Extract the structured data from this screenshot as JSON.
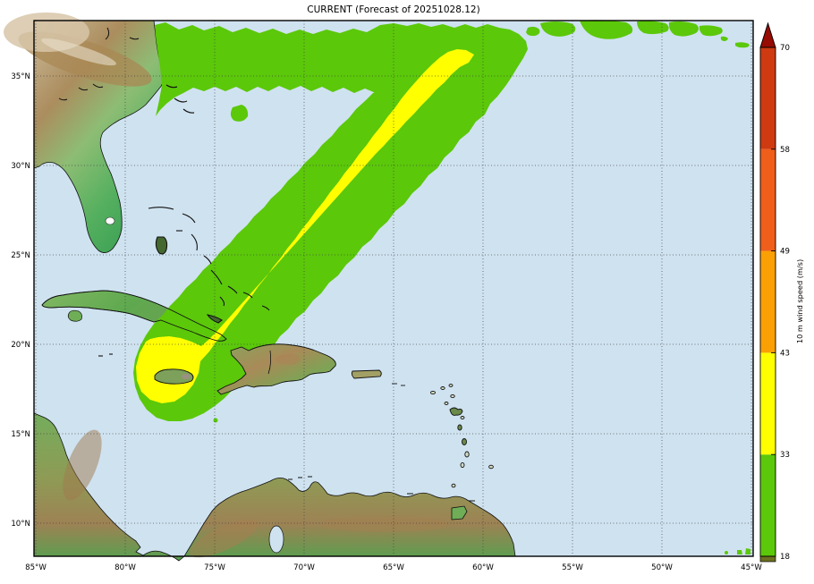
{
  "title": "CURRENT (Forecast of 20251028.12)",
  "colors": {
    "ocean": "#cfe2f0",
    "swath_green": "#5bc80a",
    "swath_yellow": "#ffff00",
    "gridline": "#3a3a3a",
    "coastline": "#111111",
    "plot_border": "#000000"
  },
  "axes": {
    "latitude": [
      {
        "label": "35°N",
        "value": 35
      },
      {
        "label": "30°N",
        "value": 30
      },
      {
        "label": "25°N",
        "value": 25
      },
      {
        "label": "20°N",
        "value": 20
      },
      {
        "label": "15°N",
        "value": 15
      },
      {
        "label": "10°N",
        "value": 10
      }
    ],
    "longitude": [
      {
        "label": "85°W",
        "value": 85
      },
      {
        "label": "80°W",
        "value": 80
      },
      {
        "label": "75°W",
        "value": 75
      },
      {
        "label": "70°W",
        "value": 70
      },
      {
        "label": "65°W",
        "value": 65
      },
      {
        "label": "60°W",
        "value": 60
      },
      {
        "label": "55°W",
        "value": 55
      },
      {
        "label": "50°W",
        "value": 50
      },
      {
        "label": "45°W",
        "value": 45
      }
    ]
  },
  "colorbar": {
    "label": "10 m wind speed (m/s)",
    "tick_values": [
      18,
      33,
      43,
      49,
      58,
      70
    ],
    "segments": [
      {
        "range": "18-33",
        "color": "#5bc80a"
      },
      {
        "range": "33-43",
        "color": "#ffff00"
      },
      {
        "range": "43-49",
        "color": "#fba004"
      },
      {
        "range": "49-58",
        "color": "#f05e1b"
      },
      {
        "range": "58-70",
        "color": "#cf3a11"
      }
    ],
    "over_color": "#960b04",
    "under_color": "#6d7020"
  },
  "chart_data": {
    "type": "map",
    "title": "CURRENT (Forecast of 20251028.12)",
    "colorbar_label": "10 m wind speed (m/s)",
    "colorbar_ticks": [
      18,
      33,
      43,
      49,
      58,
      70
    ],
    "lat_range_deg_n": [
      8,
      38.2
    ],
    "lon_range_deg_w": [
      85,
      45
    ],
    "grid_interval_deg": 5,
    "swath_levels": {
      "green_band_m_s": "18-33",
      "yellow_core_m_s": "33-43"
    },
    "swath_track": "from Jamaica / eastern Cuba (≈77W,18N) northeastward across the Bahamas and western Atlantic to ≈57W,37N, plus a zonal band along 35N-38N between 77W and 57W"
  }
}
